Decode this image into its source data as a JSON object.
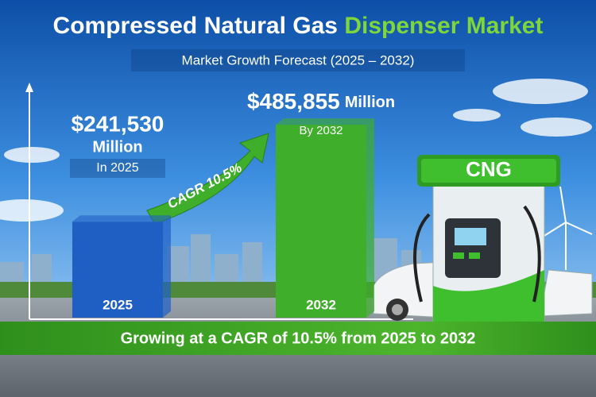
{
  "chart_data": {
    "type": "bar",
    "title": "Compressed Natural Gas",
    "title_highlight": "Dispenser Market",
    "subtitle": "Market Growth Forecast (2025 – 2032)",
    "categories": [
      "2025",
      "2032"
    ],
    "values": [
      241530,
      485855
    ],
    "value_labels": [
      "$241,530",
      "$485,855"
    ],
    "unit": "Million",
    "value_notes": [
      "In 2025",
      "By 2032"
    ],
    "colors": [
      "#1f5fc4",
      "#3fae2a"
    ],
    "ylim": [
      0,
      500000
    ],
    "annotation": "CAGR 10.5%",
    "footer": "Growing at a CAGR of 10.5% from 2025 to 2032",
    "sign": "CNG"
  }
}
